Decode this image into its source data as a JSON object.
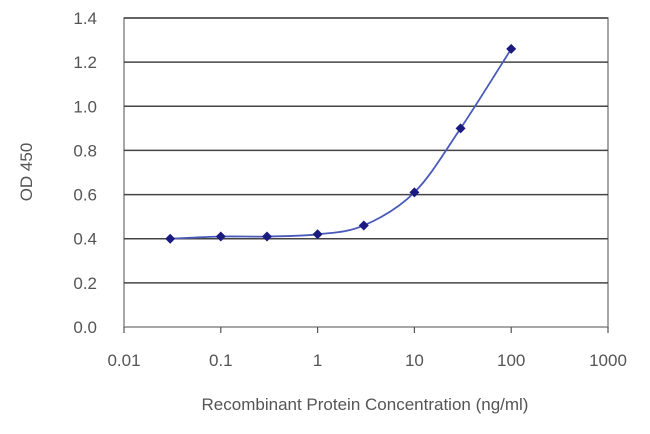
{
  "chart_data": {
    "type": "scatter",
    "title": "",
    "xlabel": "Recombinant Protein Concentration (ng/ml)",
    "ylabel": "OD 450",
    "x_scale": "log",
    "xlim": [
      0.01,
      1000
    ],
    "ylim": [
      0.0,
      1.4
    ],
    "x_ticks": [
      "0.01",
      "0.1",
      "1",
      "10",
      "100",
      "1000"
    ],
    "y_ticks": [
      "0.0",
      "0.2",
      "0.4",
      "0.6",
      "0.8",
      "1.0",
      "1.2",
      "1.4"
    ],
    "grid": "horizontal",
    "legend": "none",
    "series": [
      {
        "x": [
          0.03,
          0.1,
          0.3,
          1,
          3,
          10,
          30,
          100
        ],
        "y": [
          0.4,
          0.41,
          0.41,
          0.42,
          0.46,
          0.61,
          0.9,
          1.26
        ],
        "marker": "diamond",
        "fit_line": "sigmoid"
      }
    ],
    "colors": {
      "marker": "#1a1a80",
      "line": "#4a5ab8",
      "grid": "#444444",
      "frame": "#888888"
    }
  }
}
